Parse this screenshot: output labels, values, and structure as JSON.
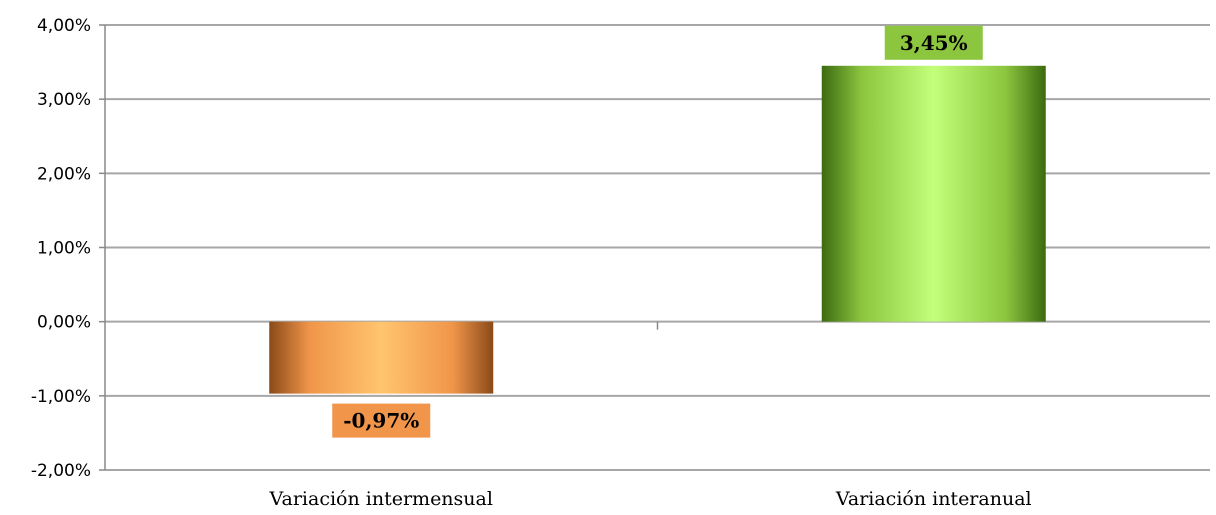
{
  "chart_data": {
    "type": "bar",
    "categories": [
      "Variación intermensual",
      "Variación interanual"
    ],
    "values": [
      -0.97,
      3.45
    ],
    "data_labels": [
      "-0,97%",
      "3,45%"
    ],
    "y_tick_values": [
      4,
      3,
      2,
      1,
      0,
      -1,
      -2
    ],
    "y_tick_labels": [
      "4,00%",
      "3,00%",
      "2,00%",
      "1,00%",
      "0,00%",
      "-1,00%",
      "-2,00%"
    ],
    "ylim": [
      -2,
      4
    ],
    "title": "",
    "xlabel": "",
    "ylabel": "",
    "grid": true,
    "legend": "none",
    "colors": {
      "negative": "#f0954a",
      "negative_light": "#ffc56e",
      "negative_dark": "#8a4a18",
      "positive": "#8cc63f",
      "positive_light": "#c2ff7a",
      "positive_dark": "#3c6a10",
      "gridline": "#a6a6a6",
      "axis": "#888888"
    }
  }
}
